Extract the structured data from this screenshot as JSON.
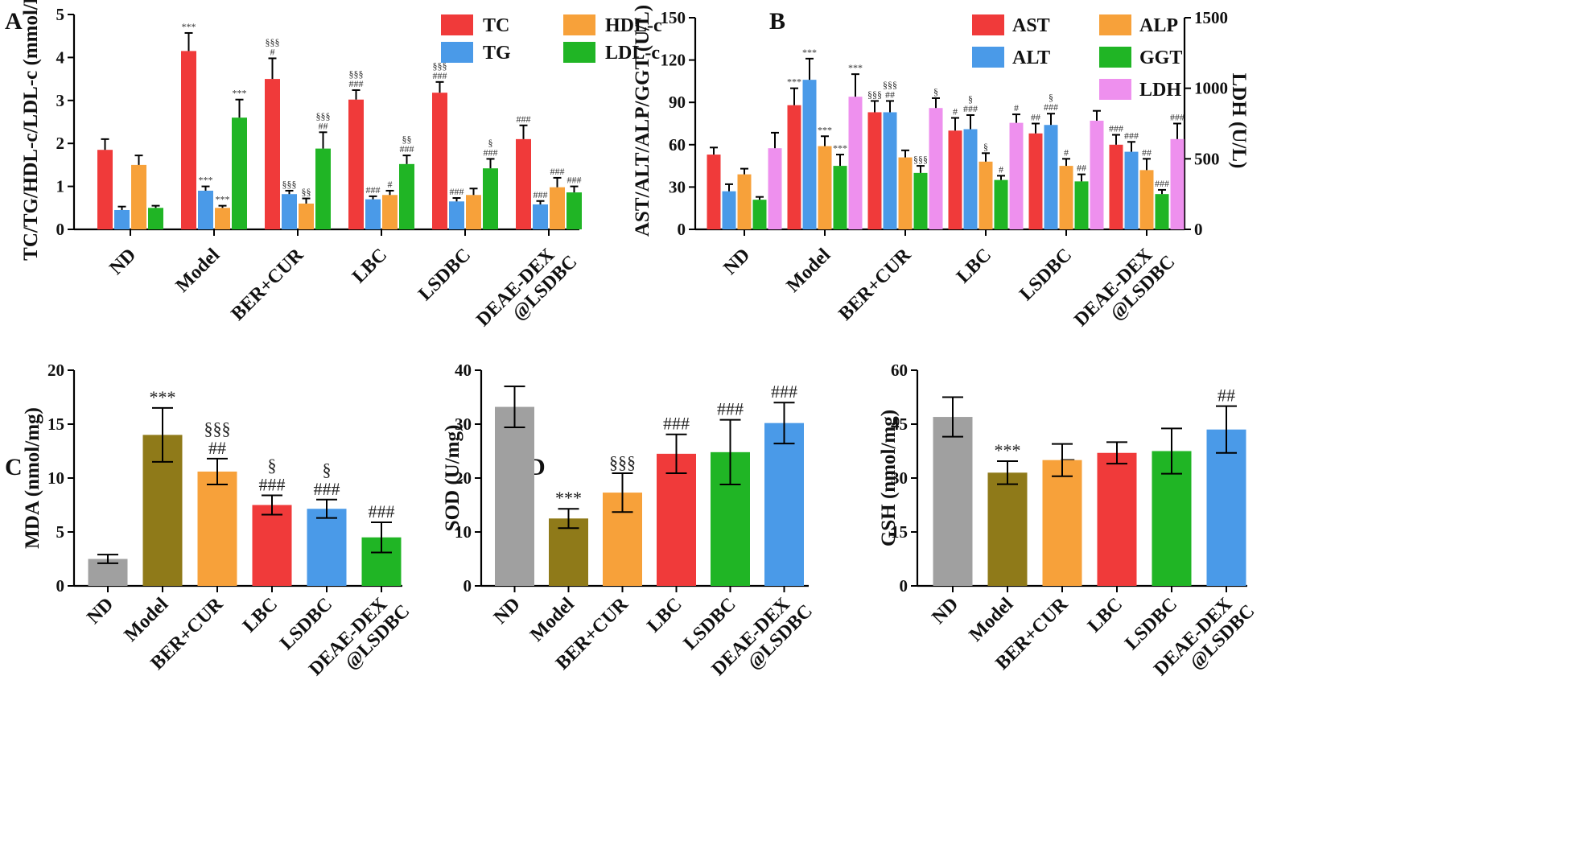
{
  "chart_data": [
    {
      "panel": "A",
      "type": "bar",
      "categories": [
        "ND",
        "Model",
        "BER+CUR",
        "LBC",
        "LSDBC",
        "DEAE-DEX\n@LSDBC"
      ],
      "ylabel": "TC/TG/HDL-c/LDL-c (mmol/L)",
      "ylim": [
        0,
        5
      ],
      "yticks": [
        0,
        1,
        2,
        3,
        4,
        5
      ],
      "series": [
        {
          "name": "TC",
          "color": "#f03a3a",
          "values": [
            1.85,
            4.15,
            3.5,
            3.02,
            3.18,
            2.1
          ],
          "errors": [
            0.25,
            0.42,
            0.48,
            0.22,
            0.25,
            0.32
          ],
          "labels": [
            [],
            [
              "***"
            ],
            [
              "§§§",
              "#"
            ],
            [
              "§§§",
              "###"
            ],
            [
              "§§§",
              "###"
            ],
            [
              "###"
            ]
          ]
        },
        {
          "name": "TG",
          "color": "#4a9ae8",
          "values": [
            0.45,
            0.9,
            0.82,
            0.7,
            0.65,
            0.58
          ],
          "errors": [
            0.08,
            0.1,
            0.08,
            0.07,
            0.08,
            0.08
          ],
          "labels": [
            [],
            [
              "***"
            ],
            [
              "§§§"
            ],
            [
              "###"
            ],
            [
              "###"
            ],
            [
              "###"
            ]
          ]
        },
        {
          "name": "HDL-c",
          "color": "#f7a13a",
          "values": [
            1.5,
            0.5,
            0.6,
            0.8,
            0.8,
            0.98
          ],
          "errors": [
            0.22,
            0.05,
            0.12,
            0.1,
            0.15,
            0.22
          ],
          "labels": [
            [],
            [
              "***"
            ],
            [
              "§§"
            ],
            [
              "#"
            ],
            [],
            [
              "###"
            ]
          ]
        },
        {
          "name": "LDL-c",
          "color": "#20b525",
          "values": [
            0.5,
            2.6,
            1.88,
            1.52,
            1.42,
            0.86
          ],
          "errors": [
            0.05,
            0.42,
            0.38,
            0.2,
            0.22,
            0.14
          ],
          "labels": [
            [],
            [
              "***"
            ],
            [
              "§§§",
              "##"
            ],
            [
              "§§",
              "###"
            ],
            [
              "§",
              "###"
            ],
            [
              "###"
            ]
          ]
        }
      ]
    },
    {
      "panel": "B",
      "type": "bar",
      "categories": [
        "ND",
        "Model",
        "BER+CUR",
        "LBC",
        "LSDBC",
        "DEAE-DEX\n@LSDBC"
      ],
      "ylabel": "AST/ALT/ALP/GGT (U/L)",
      "y2label": "LDH (U/L)",
      "ylim": [
        0,
        150
      ],
      "yticks": [
        0,
        30,
        60,
        90,
        120,
        150
      ],
      "y2lim": [
        0,
        1500
      ],
      "y2ticks": [
        0,
        500,
        1000,
        1500
      ],
      "series": [
        {
          "name": "AST",
          "color": "#f03a3a",
          "axis": "left",
          "values": [
            53,
            88,
            83,
            70,
            68,
            60
          ],
          "errors": [
            5,
            12,
            8,
            9,
            7,
            7
          ],
          "labels": [
            [],
            [
              "***"
            ],
            [
              "§§§"
            ],
            [
              "#"
            ],
            [
              "##"
            ],
            [
              "###"
            ]
          ]
        },
        {
          "name": "ALT",
          "color": "#4a9ae8",
          "axis": "left",
          "values": [
            27,
            106,
            83,
            71,
            74,
            55
          ],
          "errors": [
            5,
            15,
            8,
            10,
            8,
            7
          ],
          "labels": [
            [],
            [
              "***"
            ],
            [
              "§§§",
              "##"
            ],
            [
              "§",
              "###"
            ],
            [
              "§",
              "###"
            ],
            [
              "###"
            ]
          ]
        },
        {
          "name": "ALP",
          "color": "#f7a13a",
          "axis": "left",
          "values": [
            39,
            59,
            51,
            48,
            45,
            42
          ],
          "errors": [
            4,
            7,
            5,
            6,
            5,
            8
          ],
          "labels": [
            [],
            [
              "***"
            ],
            [],
            [
              "§"
            ],
            [
              "#"
            ],
            [
              "##"
            ]
          ]
        },
        {
          "name": "GGT",
          "color": "#20b525",
          "axis": "left",
          "values": [
            21,
            45,
            40,
            35,
            34,
            25
          ],
          "errors": [
            2,
            8,
            5,
            3,
            5,
            3
          ],
          "labels": [
            [],
            [
              "***"
            ],
            [
              "§§§"
            ],
            [
              "#"
            ],
            [
              "##"
            ],
            [
              "###"
            ]
          ]
        },
        {
          "name": "LDH",
          "color": "#ee90ee",
          "axis": "right",
          "values": [
            575,
            940,
            860,
            755,
            770,
            640
          ],
          "errors": [
            110,
            160,
            70,
            60,
            70,
            110
          ],
          "labels": [
            [],
            [
              "***"
            ],
            [
              "§"
            ],
            [
              "#"
            ],
            [],
            [
              "###"
            ]
          ]
        }
      ]
    },
    {
      "panel": "C",
      "type": "bar",
      "categories": [
        "ND",
        "Model",
        "BER+CUR",
        "LBC",
        "LSDBC",
        "DEAE-DEX\n@LSDBC"
      ],
      "ylabel": "MDA (nmol/mg)",
      "ylim": [
        0,
        20
      ],
      "yticks": [
        0,
        5,
        10,
        15,
        20
      ],
      "colors": [
        "#a0a0a0",
        "#8f7a19",
        "#f7a13a",
        "#f03a3a",
        "#4a9ae8",
        "#20b525"
      ],
      "values": [
        2.5,
        14,
        10.6,
        7.5,
        7.15,
        4.5
      ],
      "errors": [
        0.4,
        2.5,
        1.2,
        0.9,
        0.85,
        1.4
      ],
      "labels": [
        [],
        [
          "***"
        ],
        [
          "§§§",
          "##"
        ],
        [
          "§",
          "###"
        ],
        [
          "§",
          "###"
        ],
        [
          "###"
        ]
      ]
    },
    {
      "panel": "D",
      "type": "bar",
      "categories": [
        "ND",
        "Model",
        "BER+CUR",
        "LBC",
        "LSDBC",
        "DEAE-DEX\n@LSDBC"
      ],
      "ylabel": "SOD (U/mg)",
      "ylim": [
        0,
        40
      ],
      "yticks": [
        0,
        10,
        20,
        30,
        40
      ],
      "colors": [
        "#a0a0a0",
        "#8f7a19",
        "#f7a13a",
        "#f03a3a",
        "#20b525",
        "#4a9ae8"
      ],
      "values": [
        33.2,
        12.5,
        17.3,
        24.5,
        24.8,
        30.2
      ],
      "errors": [
        3.8,
        1.8,
        3.6,
        3.6,
        6,
        3.8
      ],
      "labels": [
        [],
        [
          "***"
        ],
        [
          "§§§"
        ],
        [
          "###"
        ],
        [
          "###"
        ],
        [
          "###"
        ]
      ]
    },
    {
      "panel": "E",
      "type": "bar",
      "categories": [
        "ND",
        "Model",
        "BER+CUR",
        "LBC",
        "LSDBC",
        "DEAE-DEX\n@LSDBC"
      ],
      "ylabel": "GSH (nmol/mg)",
      "ylim": [
        0,
        60
      ],
      "yticks": [
        0,
        15,
        30,
        45,
        60
      ],
      "colors": [
        "#a0a0a0",
        "#8f7a19",
        "#f7a13a",
        "#f03a3a",
        "#20b525",
        "#4a9ae8"
      ],
      "values": [
        47,
        31.5,
        35,
        37,
        37.5,
        43.5
      ],
      "errors": [
        5.5,
        3.2,
        4.5,
        3,
        6.3,
        6.5
      ],
      "labels": [
        [],
        [
          "***"
        ],
        [],
        [],
        [],
        [
          "##"
        ]
      ]
    }
  ]
}
